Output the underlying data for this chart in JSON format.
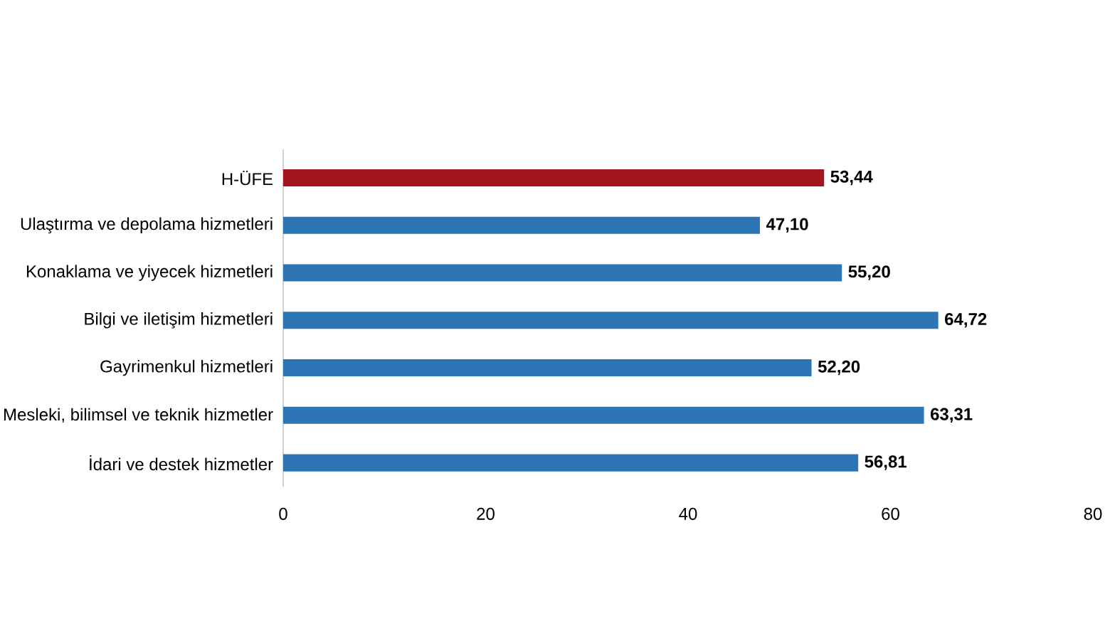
{
  "chart_data": {
    "type": "bar",
    "orientation": "horizontal",
    "categories": [
      "H-ÜFE",
      "Ulaştırma ve depolama hizmetleri",
      "Konaklama ve yiyecek hizmetleri",
      "Bilgi ve iletişim hizmetleri",
      "Gayrimenkul hizmetleri",
      "Mesleki, bilimsel ve teknik hizmetler",
      "İdari ve destek hizmetler"
    ],
    "values": [
      53.44,
      47.1,
      55.2,
      64.72,
      52.2,
      63.31,
      56.81
    ],
    "colors": [
      "#a5161c",
      "#2e75b6",
      "#2e75b6",
      "#2e75b6",
      "#2e75b6",
      "#2e75b6",
      "#2e75b6"
    ],
    "value_labels": [
      "53,44",
      "47,10",
      "55,20",
      "64,72",
      "52,20",
      "63,31",
      "56,81"
    ],
    "xlim": [
      0,
      80
    ],
    "xticks": [
      0,
      20,
      40,
      60,
      80
    ],
    "grid": false
  }
}
